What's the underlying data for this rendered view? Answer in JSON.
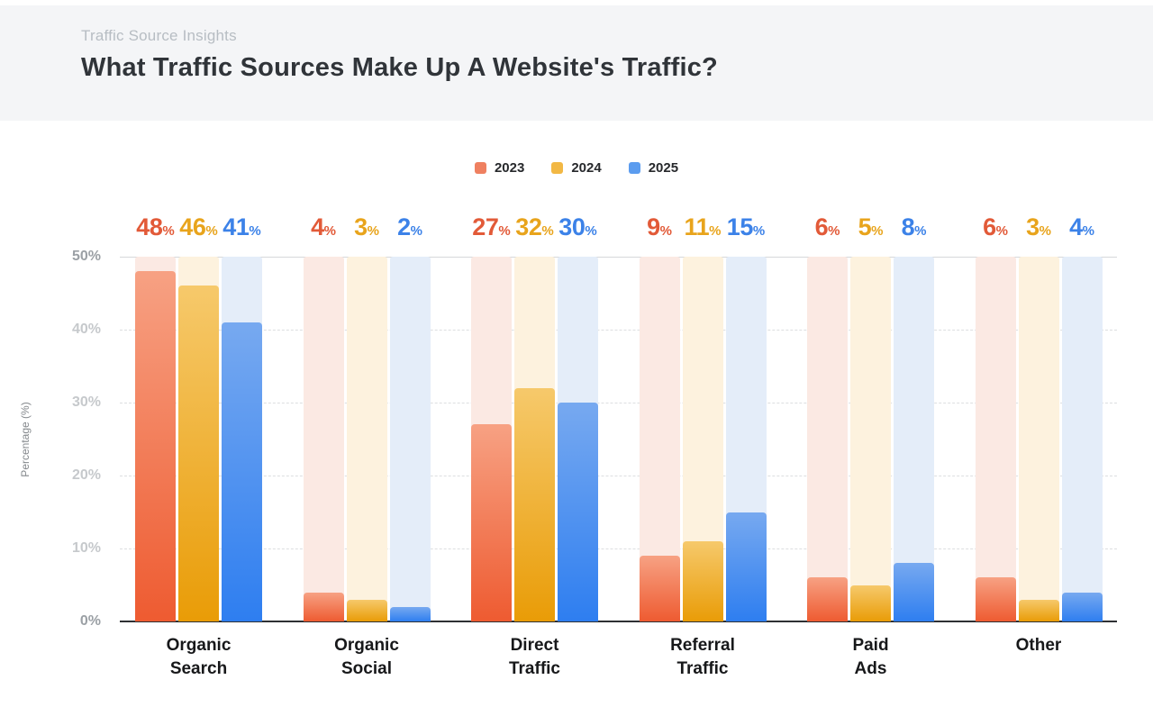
{
  "header": {
    "eyebrow": "Traffic Source Insights",
    "title": "What Traffic Sources Make Up A Website's Traffic?"
  },
  "chart_data": {
    "type": "bar",
    "title": "What Traffic Sources Make Up A Website's Traffic?",
    "categories": [
      "Organic Search",
      "Organic Social",
      "Direct Traffic",
      "Referral Traffic",
      "Paid Ads",
      "Other"
    ],
    "category_label_lines": [
      [
        "Organic",
        "Search"
      ],
      [
        "Organic",
        "Social"
      ],
      [
        "Direct",
        "Traffic"
      ],
      [
        "Referral",
        "Traffic"
      ],
      [
        "Paid",
        "Ads"
      ],
      [
        "Other"
      ]
    ],
    "series": [
      {
        "name": "2023",
        "values": [
          48,
          4,
          27,
          9,
          6,
          6
        ],
        "color": "#EF8060",
        "bar_gradient": [
          "#F7A183",
          "#EE5B31"
        ],
        "band_tint": "#FBE9E3",
        "label_color": "#E25A38"
      },
      {
        "name": "2024",
        "values": [
          46,
          3,
          32,
          11,
          5,
          3
        ],
        "color": "#F2B844",
        "bar_gradient": [
          "#F6C96B",
          "#E99C07"
        ],
        "band_tint": "#FDF2DE",
        "label_color": "#E8A41C"
      },
      {
        "name": "2025",
        "values": [
          41,
          2,
          30,
          15,
          8,
          4
        ],
        "color": "#5B9CEF",
        "bar_gradient": [
          "#77A9F0",
          "#2E7EF0"
        ],
        "band_tint": "#E4EDF9",
        "label_color": "#3C82E8"
      }
    ],
    "value_suffix": "%",
    "ylabel": "Percentage (%)",
    "ylim": [
      0,
      50
    ],
    "yticks": [
      {
        "label": "50%",
        "value": 50,
        "emphasis": true
      },
      {
        "label": "40%",
        "value": 40
      },
      {
        "label": "30%",
        "value": 30
      },
      {
        "label": "20%",
        "value": 20
      },
      {
        "label": "10%",
        "value": 10
      },
      {
        "label": "0%",
        "value": 0,
        "emphasis": true
      }
    ],
    "grid": "dashed-horizontal",
    "legend_position": "top-center"
  }
}
